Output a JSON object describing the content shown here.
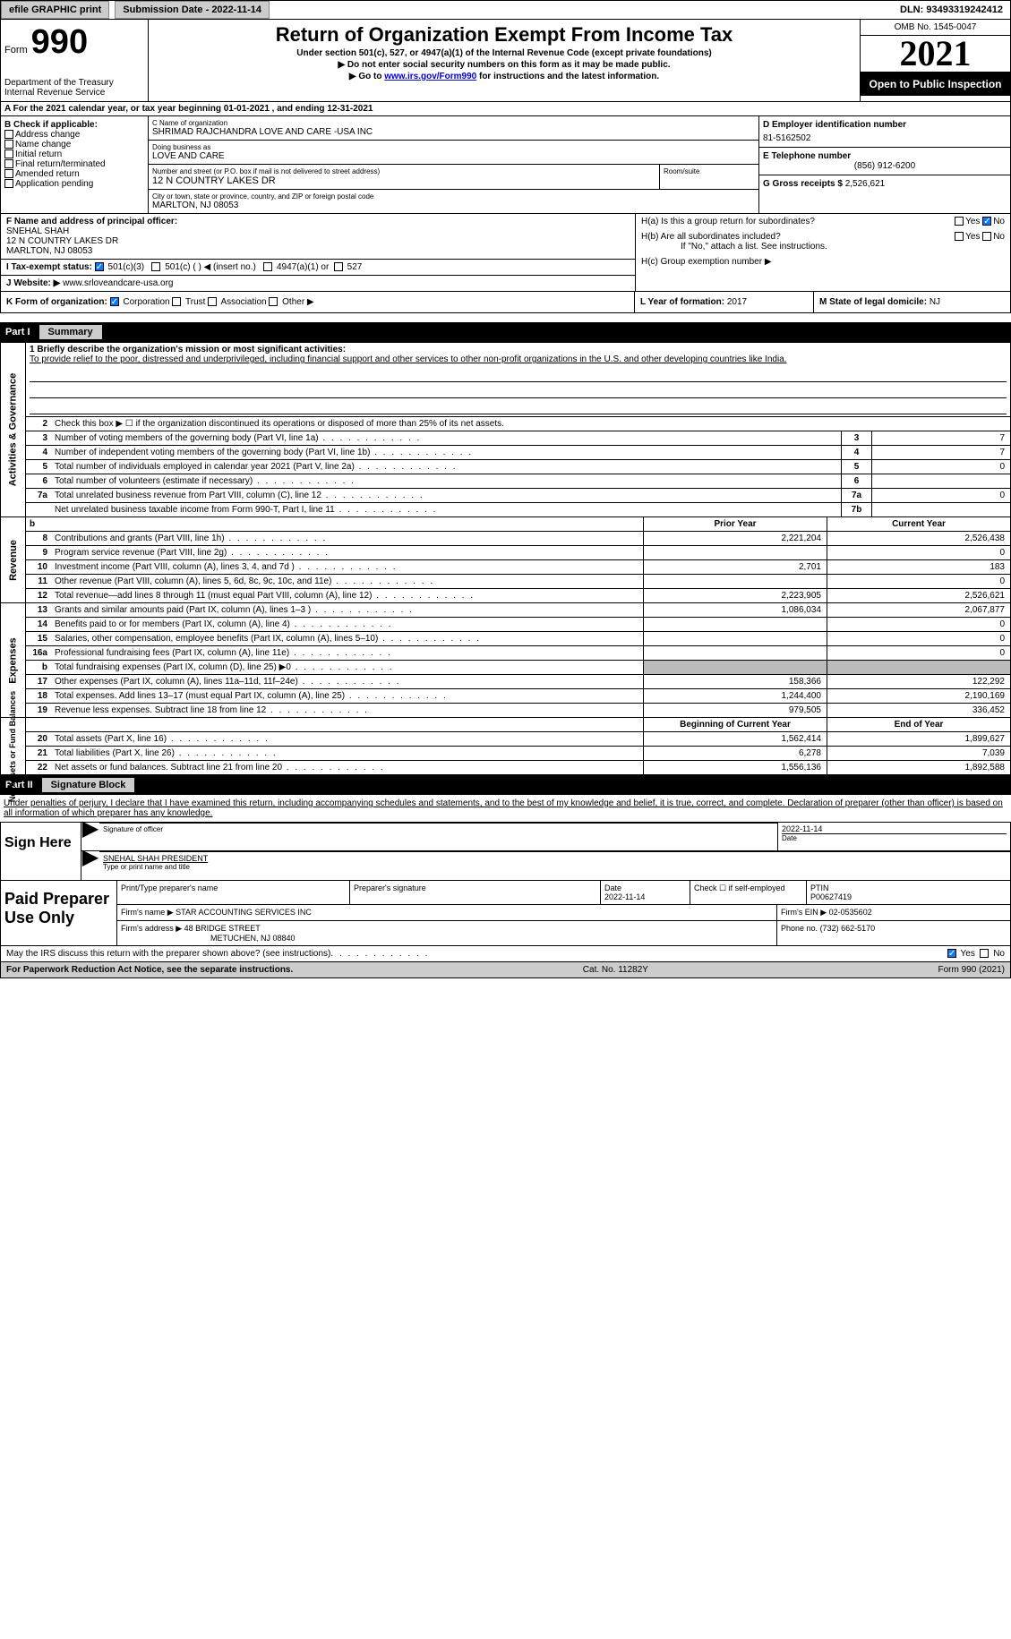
{
  "topbar": {
    "efile": "efile GRAPHIC print",
    "submission": "Submission Date - 2022-11-14",
    "dln": "DLN: 93493319242412"
  },
  "header": {
    "form_label": "Form",
    "form_num": "990",
    "title": "Return of Organization Exempt From Income Tax",
    "subtitle": "Under section 501(c), 527, or 4947(a)(1) of the Internal Revenue Code (except private foundations)",
    "instr1": "▶ Do not enter social security numbers on this form as it may be made public.",
    "instr2_pre": "▶ Go to ",
    "instr2_link": "www.irs.gov/Form990",
    "instr2_post": " for instructions and the latest information.",
    "dept": "Department of the Treasury\nInternal Revenue Service",
    "omb": "OMB No. 1545-0047",
    "year": "2021",
    "open": "Open to Public Inspection"
  },
  "rowA": "A  For the 2021 calendar year, or tax year beginning 01-01-2021   , and ending 12-31-2021",
  "colB": {
    "label": "B Check if applicable:",
    "items": [
      "Address change",
      "Name change",
      "Initial return",
      "Final return/terminated",
      "Amended return",
      "Application pending"
    ]
  },
  "colC": {
    "name_label": "C Name of organization",
    "name": "SHRIMAD RAJCHANDRA LOVE AND CARE -USA INC",
    "dba_label": "Doing business as",
    "dba": "LOVE AND CARE",
    "street_label": "Number and street (or P.O. box if mail is not delivered to street address)",
    "street": "12 N COUNTRY LAKES DR",
    "room_label": "Room/suite",
    "city_label": "City or town, state or province, country, and ZIP or foreign postal code",
    "city": "MARLTON, NJ  08053"
  },
  "colD": {
    "ein_label": "D Employer identification number",
    "ein": "81-5162502",
    "phone_label": "E Telephone number",
    "phone": "(856) 912-6200",
    "receipts_label": "G Gross receipts $",
    "receipts": "2,526,621"
  },
  "rowF": {
    "label": "F  Name and address of principal officer:",
    "name": "SNEHAL SHAH",
    "street": "12 N COUNTRY LAKES DR",
    "city": "MARLTON, NJ  08053"
  },
  "rowH": {
    "ha": "H(a)  Is this a group return for subordinates?",
    "hb": "H(b)  Are all subordinates included?",
    "hb_note": "If \"No,\" attach a list. See instructions.",
    "hc": "H(c)  Group exemption number ▶"
  },
  "rowI": {
    "label": "I    Tax-exempt status:",
    "c3": "501(c)(3)",
    "c": "501(c) (  ) ◀ (insert no.)",
    "a1": "4947(a)(1) or",
    "s527": "527"
  },
  "rowJ": {
    "label": "J   Website: ▶",
    "site": "www.srloveandcare-usa.org"
  },
  "rowK": {
    "label": "K Form of organization:",
    "corp": "Corporation",
    "trust": "Trust",
    "assoc": "Association",
    "other": "Other ▶",
    "l_label": "L Year of formation:",
    "l_val": "2017",
    "m_label": "M State of legal domicile:",
    "m_val": "NJ"
  },
  "part1": {
    "num": "Part I",
    "title": "Summary",
    "mission_label": "1   Briefly describe the organization's mission or most significant activities:",
    "mission": "To provide relief to the poor, distressed and underprivileged, including financial support and other services to other non-profit organizations in the U.S. and other developing countries like India.",
    "line2": "Check this box ▶ ☐ if the organization discontinued its operations or disposed of more than 25% of its net assets.",
    "rows": [
      {
        "n": "3",
        "t": "Number of voting members of the governing body (Part VI, line 1a)",
        "box": "3",
        "v": "7"
      },
      {
        "n": "4",
        "t": "Number of independent voting members of the governing body (Part VI, line 1b)",
        "box": "4",
        "v": "7"
      },
      {
        "n": "5",
        "t": "Total number of individuals employed in calendar year 2021 (Part V, line 2a)",
        "box": "5",
        "v": "0"
      },
      {
        "n": "6",
        "t": "Total number of volunteers (estimate if necessary)",
        "box": "6",
        "v": ""
      },
      {
        "n": "7a",
        "t": "Total unrelated business revenue from Part VIII, column (C), line 12",
        "box": "7a",
        "v": "0"
      },
      {
        "n": "",
        "t": "Net unrelated business taxable income from Form 990-T, Part I, line 11",
        "box": "7b",
        "v": ""
      }
    ],
    "side1": "Activities & Governance"
  },
  "revenue": {
    "side": "Revenue",
    "header_prior": "Prior Year",
    "header_curr": "Current Year",
    "rows": [
      {
        "n": "8",
        "t": "Contributions and grants (Part VIII, line 1h)",
        "p": "2,221,204",
        "c": "2,526,438"
      },
      {
        "n": "9",
        "t": "Program service revenue (Part VIII, line 2g)",
        "p": "",
        "c": "0"
      },
      {
        "n": "10",
        "t": "Investment income (Part VIII, column (A), lines 3, 4, and 7d )",
        "p": "2,701",
        "c": "183"
      },
      {
        "n": "11",
        "t": "Other revenue (Part VIII, column (A), lines 5, 6d, 8c, 9c, 10c, and 11e)",
        "p": "",
        "c": "0"
      },
      {
        "n": "12",
        "t": "Total revenue—add lines 8 through 11 (must equal Part VIII, column (A), line 12)",
        "p": "2,223,905",
        "c": "2,526,621"
      }
    ]
  },
  "expenses": {
    "side": "Expenses",
    "rows": [
      {
        "n": "13",
        "t": "Grants and similar amounts paid (Part IX, column (A), lines 1–3 )",
        "p": "1,086,034",
        "c": "2,067,877"
      },
      {
        "n": "14",
        "t": "Benefits paid to or for members (Part IX, column (A), line 4)",
        "p": "",
        "c": "0"
      },
      {
        "n": "15",
        "t": "Salaries, other compensation, employee benefits (Part IX, column (A), lines 5–10)",
        "p": "",
        "c": "0"
      },
      {
        "n": "16a",
        "t": "Professional fundraising fees (Part IX, column (A), line 11e)",
        "p": "",
        "c": "0"
      },
      {
        "n": "b",
        "t": "Total fundraising expenses (Part IX, column (D), line 25) ▶0",
        "p": "shaded",
        "c": "shaded"
      },
      {
        "n": "17",
        "t": "Other expenses (Part IX, column (A), lines 11a–11d, 11f–24e)",
        "p": "158,366",
        "c": "122,292"
      },
      {
        "n": "18",
        "t": "Total expenses. Add lines 13–17 (must equal Part IX, column (A), line 25)",
        "p": "1,244,400",
        "c": "2,190,169"
      },
      {
        "n": "19",
        "t": "Revenue less expenses. Subtract line 18 from line 12",
        "p": "979,505",
        "c": "336,452"
      }
    ]
  },
  "netassets": {
    "side": "Net Assets or Fund Balances",
    "header_prior": "Beginning of Current Year",
    "header_curr": "End of Year",
    "rows": [
      {
        "n": "20",
        "t": "Total assets (Part X, line 16)",
        "p": "1,562,414",
        "c": "1,899,627"
      },
      {
        "n": "21",
        "t": "Total liabilities (Part X, line 26)",
        "p": "6,278",
        "c": "7,039"
      },
      {
        "n": "22",
        "t": "Net assets or fund balances. Subtract line 21 from line 20",
        "p": "1,556,136",
        "c": "1,892,588"
      }
    ]
  },
  "part2": {
    "num": "Part II",
    "title": "Signature Block",
    "declaration": "Under penalties of perjury, I declare that I have examined this return, including accompanying schedules and statements, and to the best of my knowledge and belief, it is true, correct, and complete. Declaration of preparer (other than officer) is based on all information of which preparer has any knowledge."
  },
  "sign": {
    "label": "Sign Here",
    "sig_label": "Signature of officer",
    "date": "2022-11-14",
    "date_label": "Date",
    "name": "SNEHAL SHAH  PRESIDENT",
    "name_label": "Type or print name and title"
  },
  "preparer": {
    "label": "Paid Preparer Use Only",
    "print_label": "Print/Type preparer's name",
    "sig_label": "Preparer's signature",
    "date_label": "Date",
    "date": "2022-11-14",
    "check_label": "Check ☐ if self-employed",
    "ptin_label": "PTIN",
    "ptin": "P00627419",
    "firm_name_label": "Firm's name     ▶",
    "firm_name": "STAR ACCOUNTING SERVICES INC",
    "firm_ein_label": "Firm's EIN ▶",
    "firm_ein": "02-0535602",
    "firm_addr_label": "Firm's address ▶",
    "firm_addr": "48 BRIDGE STREET",
    "firm_city": "METUCHEN, NJ  08840",
    "phone_label": "Phone no.",
    "phone": "(732) 662-5170"
  },
  "footer": {
    "discuss": "May the IRS discuss this return with the preparer shown above? (see instructions)",
    "yes": "Yes",
    "no": "No",
    "paperwork": "For Paperwork Reduction Act Notice, see the separate instructions.",
    "cat": "Cat. No. 11282Y",
    "formrev": "Form 990 (2021)"
  }
}
